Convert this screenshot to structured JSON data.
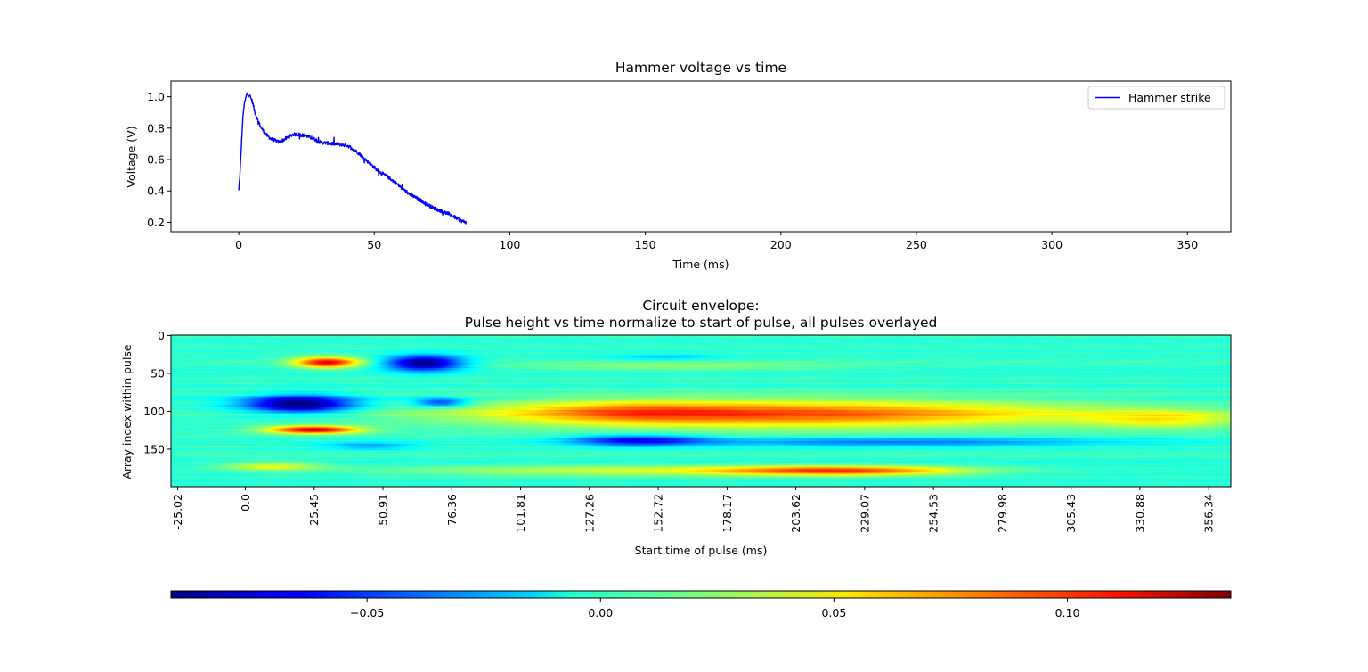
{
  "chart_data": [
    {
      "type": "line",
      "title": "Hammer voltage vs time",
      "xlabel": "Time (ms)",
      "ylabel": "Voltage (V)",
      "xlim": [
        -25,
        366
      ],
      "ylim": [
        0.14,
        1.1
      ],
      "xticks": [
        0,
        50,
        100,
        150,
        200,
        250,
        300,
        350
      ],
      "yticks": [
        0.2,
        0.4,
        0.6,
        0.8,
        1.0
      ],
      "xtick_labels": [
        "0",
        "50",
        "100",
        "150",
        "200",
        "250",
        "300",
        "350"
      ],
      "ytick_labels": [
        "0.2",
        "0.4",
        "0.6",
        "0.8",
        "1.0"
      ],
      "legend": {
        "placement": "upper-right"
      },
      "series": [
        {
          "name": "Hammer strike",
          "color": "#0000ff",
          "x": [
            0,
            0.5,
            1,
            1.5,
            2,
            3,
            4,
            5,
            6,
            8,
            10,
            12,
            15,
            18,
            20,
            22,
            25,
            28,
            30,
            35,
            40,
            42,
            45,
            48,
            50,
            52,
            55,
            58,
            60,
            63,
            65,
            68,
            70,
            72,
            75,
            78,
            80,
            82,
            84
          ],
          "y": [
            0.4,
            0.52,
            0.7,
            0.86,
            0.95,
            1.02,
            1.01,
            0.97,
            0.9,
            0.81,
            0.76,
            0.73,
            0.71,
            0.74,
            0.76,
            0.76,
            0.75,
            0.73,
            0.71,
            0.7,
            0.69,
            0.67,
            0.63,
            0.58,
            0.55,
            0.52,
            0.49,
            0.45,
            0.42,
            0.38,
            0.36,
            0.33,
            0.31,
            0.29,
            0.27,
            0.25,
            0.23,
            0.21,
            0.2
          ]
        }
      ]
    },
    {
      "type": "heatmap",
      "title": "Circuit envelope:\nPulse height vs time normalize to start of pulse, all pulses overlayed",
      "xlabel": "Start time of pulse (ms)",
      "ylabel": "Array index within pulse",
      "colormap": "jet",
      "x_range": [
        -27.5,
        364.5
      ],
      "y_range": [
        0,
        199
      ],
      "y_inverted": true,
      "xticks": [
        -25.02,
        0.0,
        25.45,
        50.91,
        76.36,
        101.81,
        127.26,
        152.72,
        178.17,
        203.62,
        229.07,
        254.53,
        279.98,
        305.43,
        330.88,
        356.34
      ],
      "xtick_labels": [
        "-25.02",
        "0.0",
        "25.45",
        "50.91",
        "76.36",
        "101.81",
        "127.26",
        "152.72",
        "178.17",
        "203.62",
        "229.07",
        "254.53",
        "279.98",
        "305.43",
        "330.88",
        "356.34"
      ],
      "xtick_rotation": 90,
      "yticks": [
        0,
        50,
        100,
        150
      ],
      "ytick_labels": [
        "0",
        "50",
        "100",
        "150"
      ],
      "colorbar": {
        "orientation": "horizontal",
        "vmin": -0.092,
        "vmax": 0.135,
        "ticks": [
          -0.05,
          0.0,
          0.05,
          0.1
        ],
        "tick_labels": [
          "−0.05",
          "0.00",
          "0.05",
          "0.10"
        ]
      }
    }
  ]
}
